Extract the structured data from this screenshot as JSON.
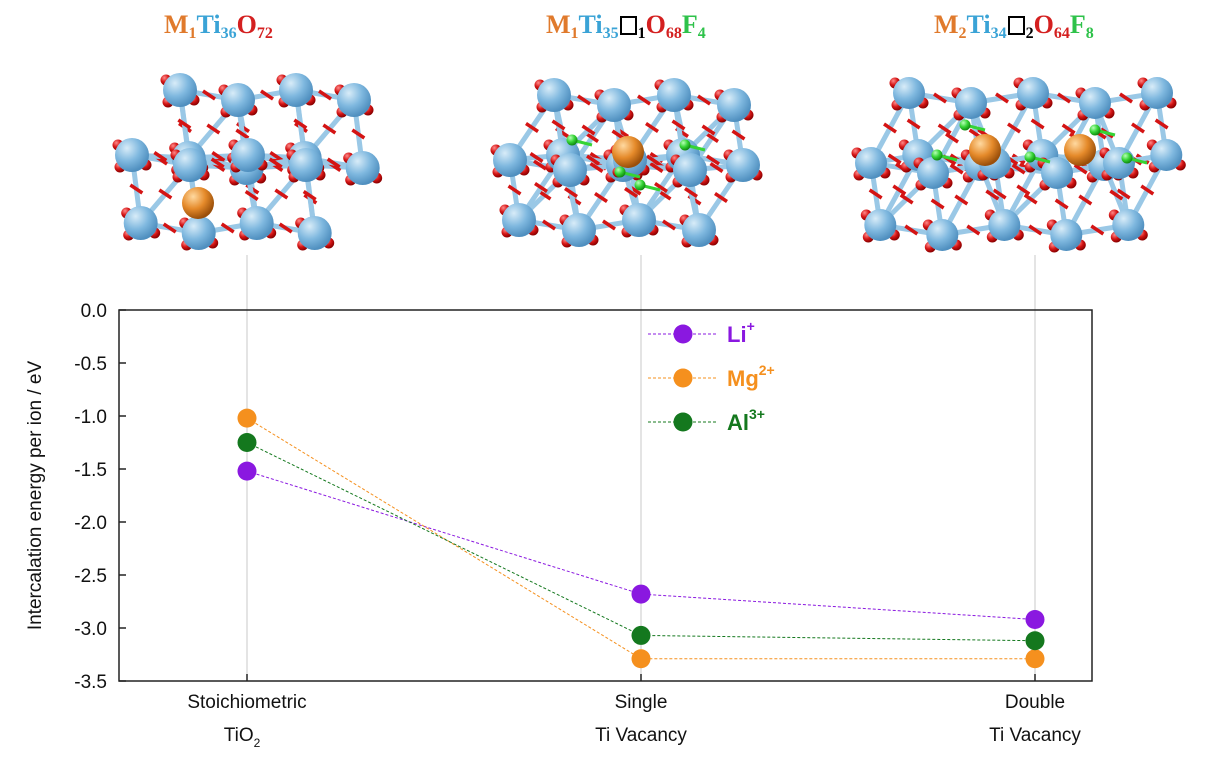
{
  "formulas": [
    {
      "parts": [
        {
          "el": "M",
          "sub": "1",
          "color": "#e07a2c"
        },
        {
          "el": "Ti",
          "sub": "36",
          "color": "#3aa3d6"
        },
        {
          "el": "O",
          "sub": "72",
          "color": "#d42020"
        }
      ]
    },
    {
      "parts": [
        {
          "el": "M",
          "sub": "1",
          "color": "#e07a2c"
        },
        {
          "el": "Ti",
          "sub": "35",
          "color": "#3aa3d6"
        },
        {
          "el": "□",
          "sub": "1",
          "color": "#000000",
          "vacancy": true
        },
        {
          "el": "O",
          "sub": "68",
          "color": "#d42020"
        },
        {
          "el": "F",
          "sub": "4",
          "color": "#2ec24a"
        }
      ]
    },
    {
      "parts": [
        {
          "el": "M",
          "sub": "2",
          "color": "#e07a2c"
        },
        {
          "el": "Ti",
          "sub": "34",
          "color": "#3aa3d6"
        },
        {
          "el": "□",
          "sub": "2",
          "color": "#000000",
          "vacancy": true
        },
        {
          "el": "O",
          "sub": "64",
          "color": "#d42020"
        },
        {
          "el": "F",
          "sub": "8",
          "color": "#2ec24a"
        }
      ]
    }
  ],
  "colors": {
    "ti": "#7fb8df",
    "o": "#d41414",
    "m": "#e58a2a",
    "f": "#35d435",
    "bond_ti": "#9ac8e6"
  },
  "chart_data": {
    "type": "line",
    "ylabel": "Intercalation energy per ion / eV",
    "ylim": [
      -3.5,
      0.0
    ],
    "yticks": [
      0.0,
      -0.5,
      -1.0,
      -1.5,
      -2.0,
      -2.5,
      -3.0,
      -3.5
    ],
    "ytick_labels": [
      "0.0",
      "-0.5",
      "-1.0",
      "-1.5",
      "-2.0",
      "-2.5",
      "-3.0",
      "-3.5"
    ],
    "categories": [
      {
        "line1": "Stoichiometric",
        "line2": "TiO",
        "line2_sub": "2"
      },
      {
        "line1": "Single",
        "line2": "Ti Vacancy",
        "line2_sub": ""
      },
      {
        "line1": "Double",
        "line2": "Ti Vacancy",
        "line2_sub": ""
      }
    ],
    "series": [
      {
        "name": "Li",
        "charge": "+",
        "color": "#8a18e0",
        "values": [
          -1.52,
          -2.68,
          -2.92
        ]
      },
      {
        "name": "Mg",
        "charge": "2+",
        "color": "#f5901e",
        "values": [
          -1.02,
          -3.29,
          -3.29
        ]
      },
      {
        "name": "Al",
        "charge": "3+",
        "color": "#14781e",
        "values": [
          -1.25,
          -3.07,
          -3.12
        ]
      }
    ],
    "legend_position": "top-center",
    "grid": "vertical lines at categories"
  }
}
